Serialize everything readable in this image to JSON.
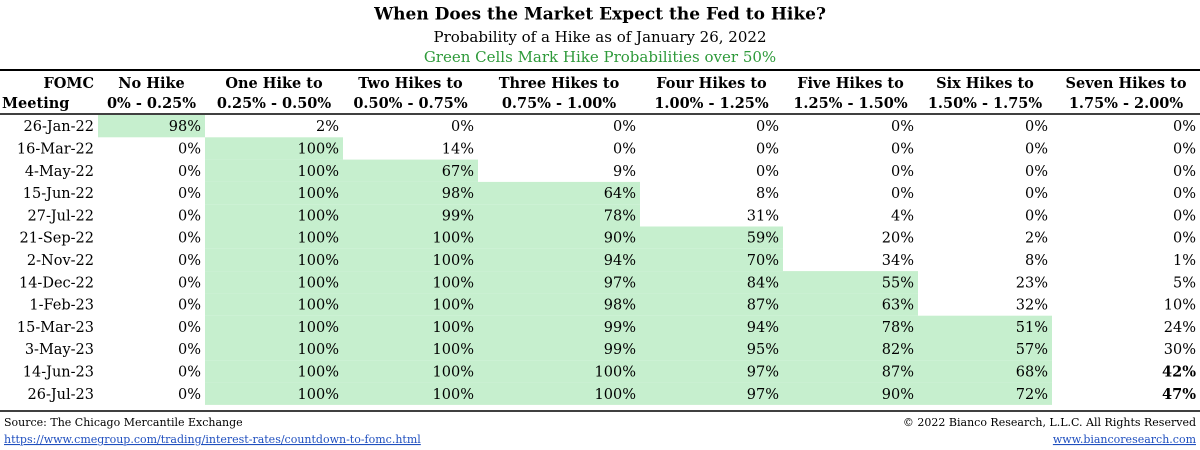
{
  "header": {
    "title": "When Does the Market Expect the Fed to Hike?",
    "subtitle": "Probability of a Hike as of January 26, 2022",
    "note": "Green Cells Mark Hike Probabilities over 50%"
  },
  "table": {
    "highlight_color": "#c6efce",
    "columns": [
      {
        "line1": "FOMC",
        "line2": "Meeting"
      },
      {
        "line1": "No Hike",
        "line2": "0% - 0.25%"
      },
      {
        "line1": "One Hike to",
        "line2": "0.25% - 0.50%"
      },
      {
        "line1": "Two Hikes to",
        "line2": "0.50% - 0.75%"
      },
      {
        "line1": "Three Hikes to",
        "line2": "0.75% - 1.00%"
      },
      {
        "line1": "Four Hikes to",
        "line2": "1.00% - 1.25%"
      },
      {
        "line1": "Five Hikes to",
        "line2": "1.25% - 1.50%"
      },
      {
        "line1": "Six Hikes to",
        "line2": "1.50% - 1.75%"
      },
      {
        "line1": "Seven Hikes to",
        "line2": "1.75% - 2.00%"
      }
    ],
    "rows": [
      {
        "date": "26-Jan-22",
        "cells": [
          "98%",
          "2%",
          "0%",
          "0%",
          "0%",
          "0%",
          "0%",
          "0%"
        ],
        "highlight": [
          true,
          false,
          false,
          false,
          false,
          false,
          false,
          false
        ]
      },
      {
        "date": "16-Mar-22",
        "cells": [
          "0%",
          "100%",
          "14%",
          "0%",
          "0%",
          "0%",
          "0%",
          "0%"
        ],
        "highlight": [
          false,
          true,
          false,
          false,
          false,
          false,
          false,
          false
        ]
      },
      {
        "date": "4-May-22",
        "cells": [
          "0%",
          "100%",
          "67%",
          "9%",
          "0%",
          "0%",
          "0%",
          "0%"
        ],
        "highlight": [
          false,
          true,
          true,
          false,
          false,
          false,
          false,
          false
        ]
      },
      {
        "date": "15-Jun-22",
        "cells": [
          "0%",
          "100%",
          "98%",
          "64%",
          "8%",
          "0%",
          "0%",
          "0%"
        ],
        "highlight": [
          false,
          true,
          true,
          true,
          false,
          false,
          false,
          false
        ]
      },
      {
        "date": "27-Jul-22",
        "cells": [
          "0%",
          "100%",
          "99%",
          "78%",
          "31%",
          "4%",
          "0%",
          "0%"
        ],
        "highlight": [
          false,
          true,
          true,
          true,
          false,
          false,
          false,
          false
        ]
      },
      {
        "date": "21-Sep-22",
        "cells": [
          "0%",
          "100%",
          "100%",
          "90%",
          "59%",
          "20%",
          "2%",
          "0%"
        ],
        "highlight": [
          false,
          true,
          true,
          true,
          true,
          false,
          false,
          false
        ]
      },
      {
        "date": "2-Nov-22",
        "cells": [
          "0%",
          "100%",
          "100%",
          "94%",
          "70%",
          "34%",
          "8%",
          "1%"
        ],
        "highlight": [
          false,
          true,
          true,
          true,
          true,
          false,
          false,
          false
        ]
      },
      {
        "date": "14-Dec-22",
        "cells": [
          "0%",
          "100%",
          "100%",
          "97%",
          "84%",
          "55%",
          "23%",
          "5%"
        ],
        "highlight": [
          false,
          true,
          true,
          true,
          true,
          true,
          false,
          false
        ]
      },
      {
        "date": "1-Feb-23",
        "cells": [
          "0%",
          "100%",
          "100%",
          "98%",
          "87%",
          "63%",
          "32%",
          "10%"
        ],
        "highlight": [
          false,
          true,
          true,
          true,
          true,
          true,
          false,
          false
        ]
      },
      {
        "date": "15-Mar-23",
        "cells": [
          "0%",
          "100%",
          "100%",
          "99%",
          "94%",
          "78%",
          "51%",
          "24%"
        ],
        "highlight": [
          false,
          true,
          true,
          true,
          true,
          true,
          true,
          false
        ]
      },
      {
        "date": "3-May-23",
        "cells": [
          "0%",
          "100%",
          "100%",
          "99%",
          "95%",
          "82%",
          "57%",
          "30%"
        ],
        "highlight": [
          false,
          true,
          true,
          true,
          true,
          true,
          true,
          false
        ]
      },
      {
        "date": "14-Jun-23",
        "cells": [
          "0%",
          "100%",
          "100%",
          "100%",
          "97%",
          "87%",
          "68%",
          "42%"
        ],
        "highlight": [
          false,
          true,
          true,
          true,
          true,
          true,
          true,
          false
        ],
        "bold": [
          false,
          false,
          false,
          false,
          false,
          false,
          false,
          true
        ]
      },
      {
        "date": "26-Jul-23",
        "cells": [
          "0%",
          "100%",
          "100%",
          "100%",
          "97%",
          "90%",
          "72%",
          "47%"
        ],
        "highlight": [
          false,
          true,
          true,
          true,
          true,
          true,
          true,
          false
        ],
        "bold": [
          false,
          false,
          false,
          false,
          false,
          false,
          false,
          true
        ]
      }
    ]
  },
  "footer": {
    "source": "Source: The Chicago Mercantile Exchange",
    "source_url": "https://www.cmegroup.com/trading/interest-rates/countdown-to-fomc.html",
    "copyright": "© 2022 Bianco Research, L.L.C. All Rights Reserved",
    "site": "www.biancoresearch.com"
  }
}
